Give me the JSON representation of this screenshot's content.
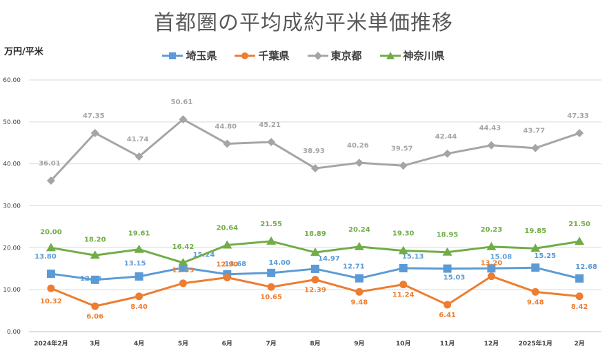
{
  "title": "首都圏の平均成約平米単価推移",
  "y_unit": "万円/平米",
  "chart_data": {
    "type": "line",
    "title": "首都圏の平均成約平米単価推移",
    "ylabel": "万円/平米",
    "xlabel": "",
    "ylim": [
      0,
      60
    ],
    "yticks": [
      "0.00",
      "10.00",
      "20.00",
      "30.00",
      "40.00",
      "50.00",
      "60.00"
    ],
    "grid": true,
    "legend_position": "top",
    "categories": [
      "2024年2月",
      "3月",
      "4月",
      "5月",
      "6月",
      "7月",
      "8月",
      "9月",
      "10月",
      "11月",
      "12月",
      "2025年1月",
      "2月"
    ],
    "series": [
      {
        "name": "埼玉県",
        "color": "#5B9BD5",
        "marker": "square",
        "values": [
          13.8,
          12.36,
          13.15,
          15.24,
          13.68,
          14.0,
          14.97,
          12.71,
          15.13,
          15.03,
          15.08,
          15.25,
          12.68
        ],
        "labels": [
          "13.80",
          "12.36",
          "13.15",
          "15.24",
          "13.68",
          "14.00",
          "14.97",
          "12.71",
          "15.13",
          "15.03",
          "15.08",
          "15.25",
          "12.68"
        ]
      },
      {
        "name": "千葉県",
        "color": "#ED7D31",
        "marker": "circle",
        "values": [
          10.32,
          6.06,
          8.4,
          11.53,
          12.9,
          10.65,
          12.39,
          9.48,
          11.24,
          6.41,
          13.2,
          9.48,
          8.42
        ],
        "labels": [
          "10.32",
          "6.06",
          "8.40",
          "11.53",
          "12.90",
          "10.65",
          "12.39",
          "9.48",
          "11.24",
          "6.41",
          "13.20",
          "9.48",
          "8.42"
        ]
      },
      {
        "name": "東京都",
        "color": "#A5A5A5",
        "marker": "diamond",
        "values": [
          36.01,
          47.35,
          41.74,
          50.61,
          44.8,
          45.21,
          38.93,
          40.26,
          39.57,
          42.44,
          44.43,
          43.77,
          47.33
        ],
        "labels": [
          "36.01",
          "47.35",
          "41.74",
          "50.61",
          "44.80",
          "45.21",
          "38.93",
          "40.26",
          "39.57",
          "42.44",
          "44.43",
          "43.77",
          "47.33"
        ]
      },
      {
        "name": "神奈川県",
        "color": "#70AD47",
        "marker": "triangle",
        "values": [
          20.0,
          18.2,
          19.61,
          16.42,
          20.64,
          21.55,
          18.89,
          20.24,
          19.3,
          18.95,
          20.23,
          19.85,
          21.5
        ],
        "labels": [
          "20.00",
          "18.20",
          "19.61",
          "16.42",
          "20.64",
          "21.55",
          "18.89",
          "20.24",
          "19.30",
          "18.95",
          "20.23",
          "19.85",
          "21.50"
        ]
      }
    ]
  }
}
